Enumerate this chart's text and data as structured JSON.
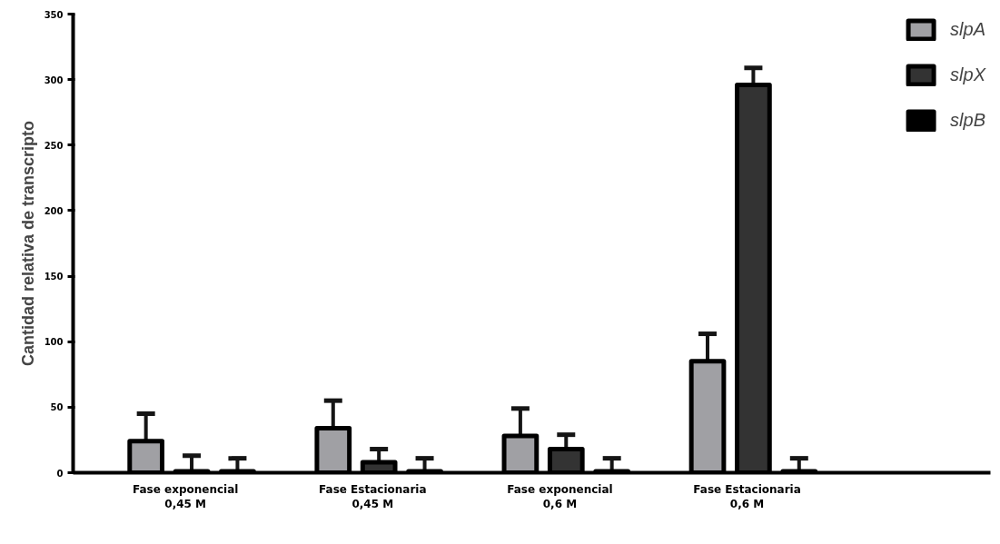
{
  "chart_data": {
    "type": "bar",
    "ylabel": "Cantidad relativa de transcripto",
    "categories": [
      "Fase exponencial\n0,45 M",
      "Fase Estacionaria\n0,45 M",
      "Fase exponencial\n0,6 M",
      "Fase Estacionaria\n0,6 M"
    ],
    "series": [
      {
        "name": "slpA",
        "color": "#a0a0a4",
        "values": [
          24,
          34,
          28,
          85
        ],
        "errors": [
          [
            24,
            45
          ],
          [
            34,
            55
          ],
          [
            28,
            49
          ],
          [
            85,
            106
          ]
        ]
      },
      {
        "name": "slpX",
        "color": "#333333",
        "values": [
          1,
          8,
          18,
          296
        ],
        "errors": [
          [
            1,
            13
          ],
          [
            8,
            18
          ],
          [
            18,
            29
          ],
          [
            296,
            309
          ]
        ]
      },
      {
        "name": "slpB",
        "color": "#000000",
        "values": [
          1,
          1,
          1,
          1
        ],
        "errors": [
          [
            1,
            11
          ],
          [
            1,
            11
          ],
          [
            1,
            11
          ],
          [
            1,
            11
          ]
        ]
      }
    ],
    "ylim": [
      0,
      350
    ],
    "yticks": [
      0,
      50,
      100,
      150,
      200,
      250,
      300,
      350
    ],
    "grid": false,
    "legend": "top right"
  }
}
